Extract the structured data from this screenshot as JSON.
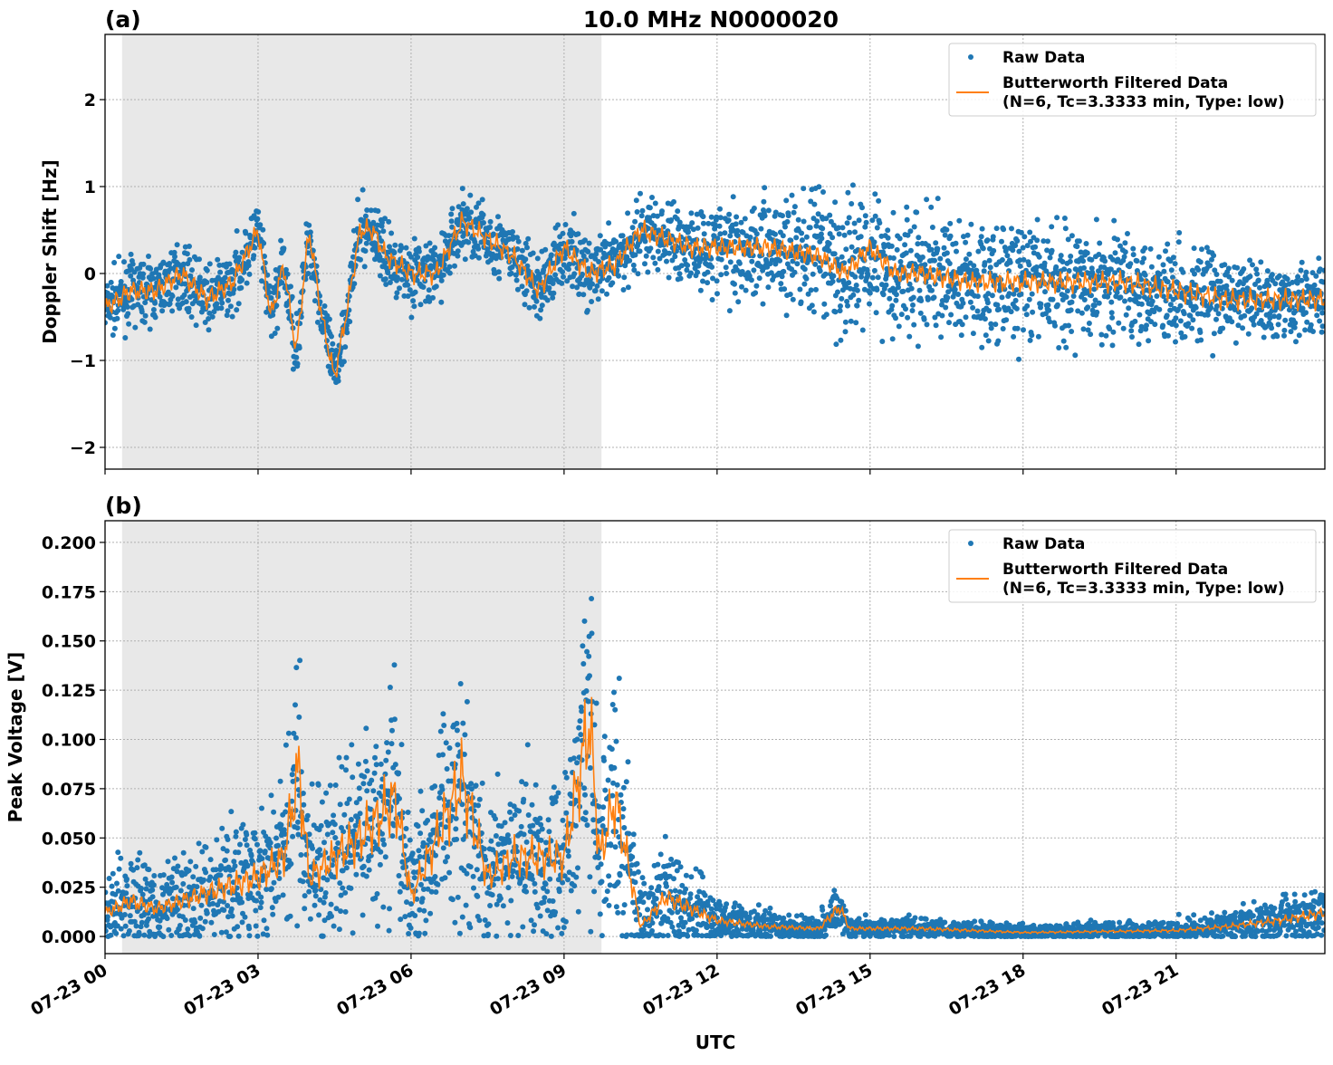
{
  "figure_title": "10.0 MHz N0000020",
  "xlabel": "UTC",
  "colors": {
    "raw": "#1f77b4",
    "filtered": "#ff7f0e",
    "shade": "#e8e8e8"
  },
  "chart_data": [
    {
      "panel_label": "(a)",
      "type": "scatter",
      "ylabel": "Doppler Shift [Hz]",
      "xlim": [
        "07-23 00:00",
        "07-23 23:55"
      ],
      "ylim": [
        -2.25,
        2.75
      ],
      "yticks": [
        -2,
        -1,
        0,
        1,
        2
      ],
      "ytick_labels": [
        "−2",
        "−1",
        "0",
        "1",
        "2"
      ],
      "xticks": [
        "07-23 00",
        "07-23 03",
        "07-23 06",
        "07-23 09",
        "07-23 12",
        "07-23 15",
        "07-23 18",
        "07-23 21"
      ],
      "grid": true,
      "legend_position": "top-right",
      "shaded_interval": [
        "07-23 00:20",
        "07-23 09:44"
      ],
      "legend": [
        "Raw Data",
        "Butterworth Filtered Data",
        "(N=6, Tc=3.3333 min, Type: low)"
      ],
      "filtered": {
        "x": [
          "00:00",
          "00:30",
          "01:00",
          "01:30",
          "02:00",
          "02:30",
          "03:00",
          "03:15",
          "03:30",
          "03:45",
          "04:00",
          "04:15",
          "04:30",
          "04:45",
          "05:00",
          "05:15",
          "05:30",
          "06:00",
          "06:30",
          "07:00",
          "07:30",
          "08:00",
          "08:30",
          "09:00",
          "09:30",
          "10:00",
          "10:30",
          "11:00",
          "11:30",
          "12:00",
          "13:00",
          "14:00",
          "14:30",
          "15:00",
          "15:30",
          "16:00",
          "17:00",
          "18:00",
          "19:00",
          "20:00",
          "21:00",
          "22:00",
          "23:00",
          "23:55"
        ],
        "y": [
          -0.4,
          -0.2,
          -0.2,
          0.0,
          -0.3,
          -0.1,
          0.5,
          -0.5,
          0.1,
          -0.9,
          0.5,
          -0.5,
          -1.2,
          -0.4,
          0.5,
          0.5,
          0.2,
          0.0,
          0.0,
          0.6,
          0.4,
          0.2,
          -0.2,
          0.3,
          0.0,
          0.1,
          0.5,
          0.4,
          0.3,
          0.3,
          0.3,
          0.2,
          0.0,
          0.3,
          0.0,
          0.0,
          -0.1,
          -0.1,
          -0.1,
          -0.1,
          -0.2,
          -0.3,
          -0.3,
          -0.3
        ]
      },
      "raw_spread": {
        "x": [
          "00:00",
          "10:00",
          "12:00",
          "14:30",
          "21:00",
          "23:55"
        ],
        "halfwidth": [
          0.3,
          0.35,
          0.45,
          0.7,
          0.5,
          0.35
        ]
      }
    },
    {
      "panel_label": "(b)",
      "type": "scatter",
      "ylabel": "Peak Voltage [V]",
      "xlim": [
        "07-23 00:00",
        "07-23 23:55"
      ],
      "ylim": [
        -0.0087,
        0.211
      ],
      "yticks": [
        0,
        0.025,
        0.05,
        0.075,
        0.1,
        0.125,
        0.15,
        0.175,
        0.2
      ],
      "ytick_labels": [
        "0.000",
        "0.025",
        "0.050",
        "0.075",
        "0.100",
        "0.125",
        "0.150",
        "0.175",
        "0.200"
      ],
      "xticks": [
        "07-23 00",
        "07-23 03",
        "07-23 06",
        "07-23 09",
        "07-23 12",
        "07-23 15",
        "07-23 18",
        "07-23 21"
      ],
      "grid": true,
      "legend_position": "top-right",
      "shaded_interval": [
        "07-23 00:20",
        "07-23 09:44"
      ],
      "legend": [
        "Raw Data",
        "Butterworth Filtered Data",
        "(N=6, Tc=3.3333 min, Type: low)"
      ],
      "filtered": {
        "x": [
          "00:00",
          "00:30",
          "01:00",
          "02:00",
          "03:00",
          "03:30",
          "03:48",
          "04:00",
          "05:00",
          "05:42",
          "06:00",
          "07:00",
          "07:30",
          "08:00",
          "09:00",
          "09:30",
          "09:42",
          "10:00",
          "10:30",
          "11:00",
          "12:00",
          "13:00",
          "14:00",
          "14:24",
          "14:36",
          "16:00",
          "18:00",
          "21:00",
          "22:00",
          "23:00",
          "23:55"
        ],
        "y": [
          0.012,
          0.018,
          0.014,
          0.022,
          0.03,
          0.04,
          0.085,
          0.03,
          0.05,
          0.07,
          0.02,
          0.08,
          0.03,
          0.04,
          0.04,
          0.11,
          0.04,
          0.07,
          0.005,
          0.02,
          0.008,
          0.005,
          0.004,
          0.015,
          0.004,
          0.004,
          0.002,
          0.003,
          0.005,
          0.008,
          0.012
        ]
      },
      "raw_spread": {
        "x": [
          "00:00",
          "10:30",
          "12:00",
          "14:30",
          "21:00",
          "23:55"
        ],
        "halfwidth": [
          0.012,
          0.02,
          0.006,
          0.003,
          0.003,
          0.008
        ]
      }
    }
  ]
}
